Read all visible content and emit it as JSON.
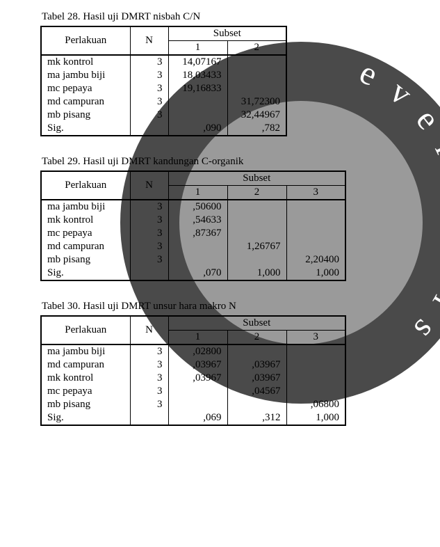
{
  "headers": {
    "perlakuan": "Perlakuan",
    "n": "N",
    "subset": "Subset",
    "s1": "1",
    "s2": "2",
    "s3": "3"
  },
  "table28": {
    "caption": "Tabel 28. Hasil uji DMRT nisbah C/N",
    "rows": [
      {
        "label": "mk kontrol",
        "n": "3",
        "c1": "14,07167",
        "c2": ""
      },
      {
        "label": "ma jambu biji",
        "n": "3",
        "c1": "18,03433",
        "c2": ""
      },
      {
        "label": "mc pepaya",
        "n": "3",
        "c1": "19,16833",
        "c2": ""
      },
      {
        "label": "md campuran",
        "n": "3",
        "c1": "",
        "c2": "31,72300"
      },
      {
        "label": "mb pisang",
        "n": "3",
        "c1": "",
        "c2": "32,44967"
      },
      {
        "label": "Sig.",
        "n": "",
        "c1": ",090",
        "c2": ",782"
      }
    ]
  },
  "table29": {
    "caption": "Tabel 29. Hasil uji DMRT kandungan C-organik",
    "rows": [
      {
        "label": "ma jambu biji",
        "n": "3",
        "c1": ",50600",
        "c2": "",
        "c3": ""
      },
      {
        "label": "mk kontrol",
        "n": "3",
        "c1": ",54633",
        "c2": "",
        "c3": ""
      },
      {
        "label": "mc pepaya",
        "n": "3",
        "c1": ",87367",
        "c2": "",
        "c3": ""
      },
      {
        "label": "md campuran",
        "n": "3",
        "c1": "",
        "c2": "1,26767",
        "c3": ""
      },
      {
        "label": "mb pisang",
        "n": "3",
        "c1": "",
        "c2": "",
        "c3": "2,20400"
      },
      {
        "label": "Sig.",
        "n": "",
        "c1": ",070",
        "c2": "1,000",
        "c3": "1,000"
      }
    ]
  },
  "table30": {
    "caption": "Tabel 30. Hasil uji DMRT unsur hara makro N",
    "rows": [
      {
        "label": "ma jambu biji",
        "n": "3",
        "c1": ",02800",
        "c2": "",
        "c3": ""
      },
      {
        "label": "md campuran",
        "n": "3",
        "c1": ",03967",
        "c2": ",03967",
        "c3": ""
      },
      {
        "label": "mk kontrol",
        "n": "3",
        "c1": ",03967",
        "c2": ",03967",
        "c3": ""
      },
      {
        "label": "mc pepaya",
        "n": "3",
        "c1": "",
        "c2": ",04567",
        "c3": ""
      },
      {
        "label": "mb pisang",
        "n": "3",
        "c1": "",
        "c2": "",
        "c3": ",06800"
      },
      {
        "label": "Sig.",
        "n": "",
        "c1": ",069",
        "c2": ",312",
        "c3": "1,000"
      }
    ]
  },
  "watermark": {
    "outer_fill": "#4a4a4a",
    "inner_fill": "#9a9a9a",
    "text": "e   v e r i t a t i s",
    "text_color": "#ffffff"
  }
}
